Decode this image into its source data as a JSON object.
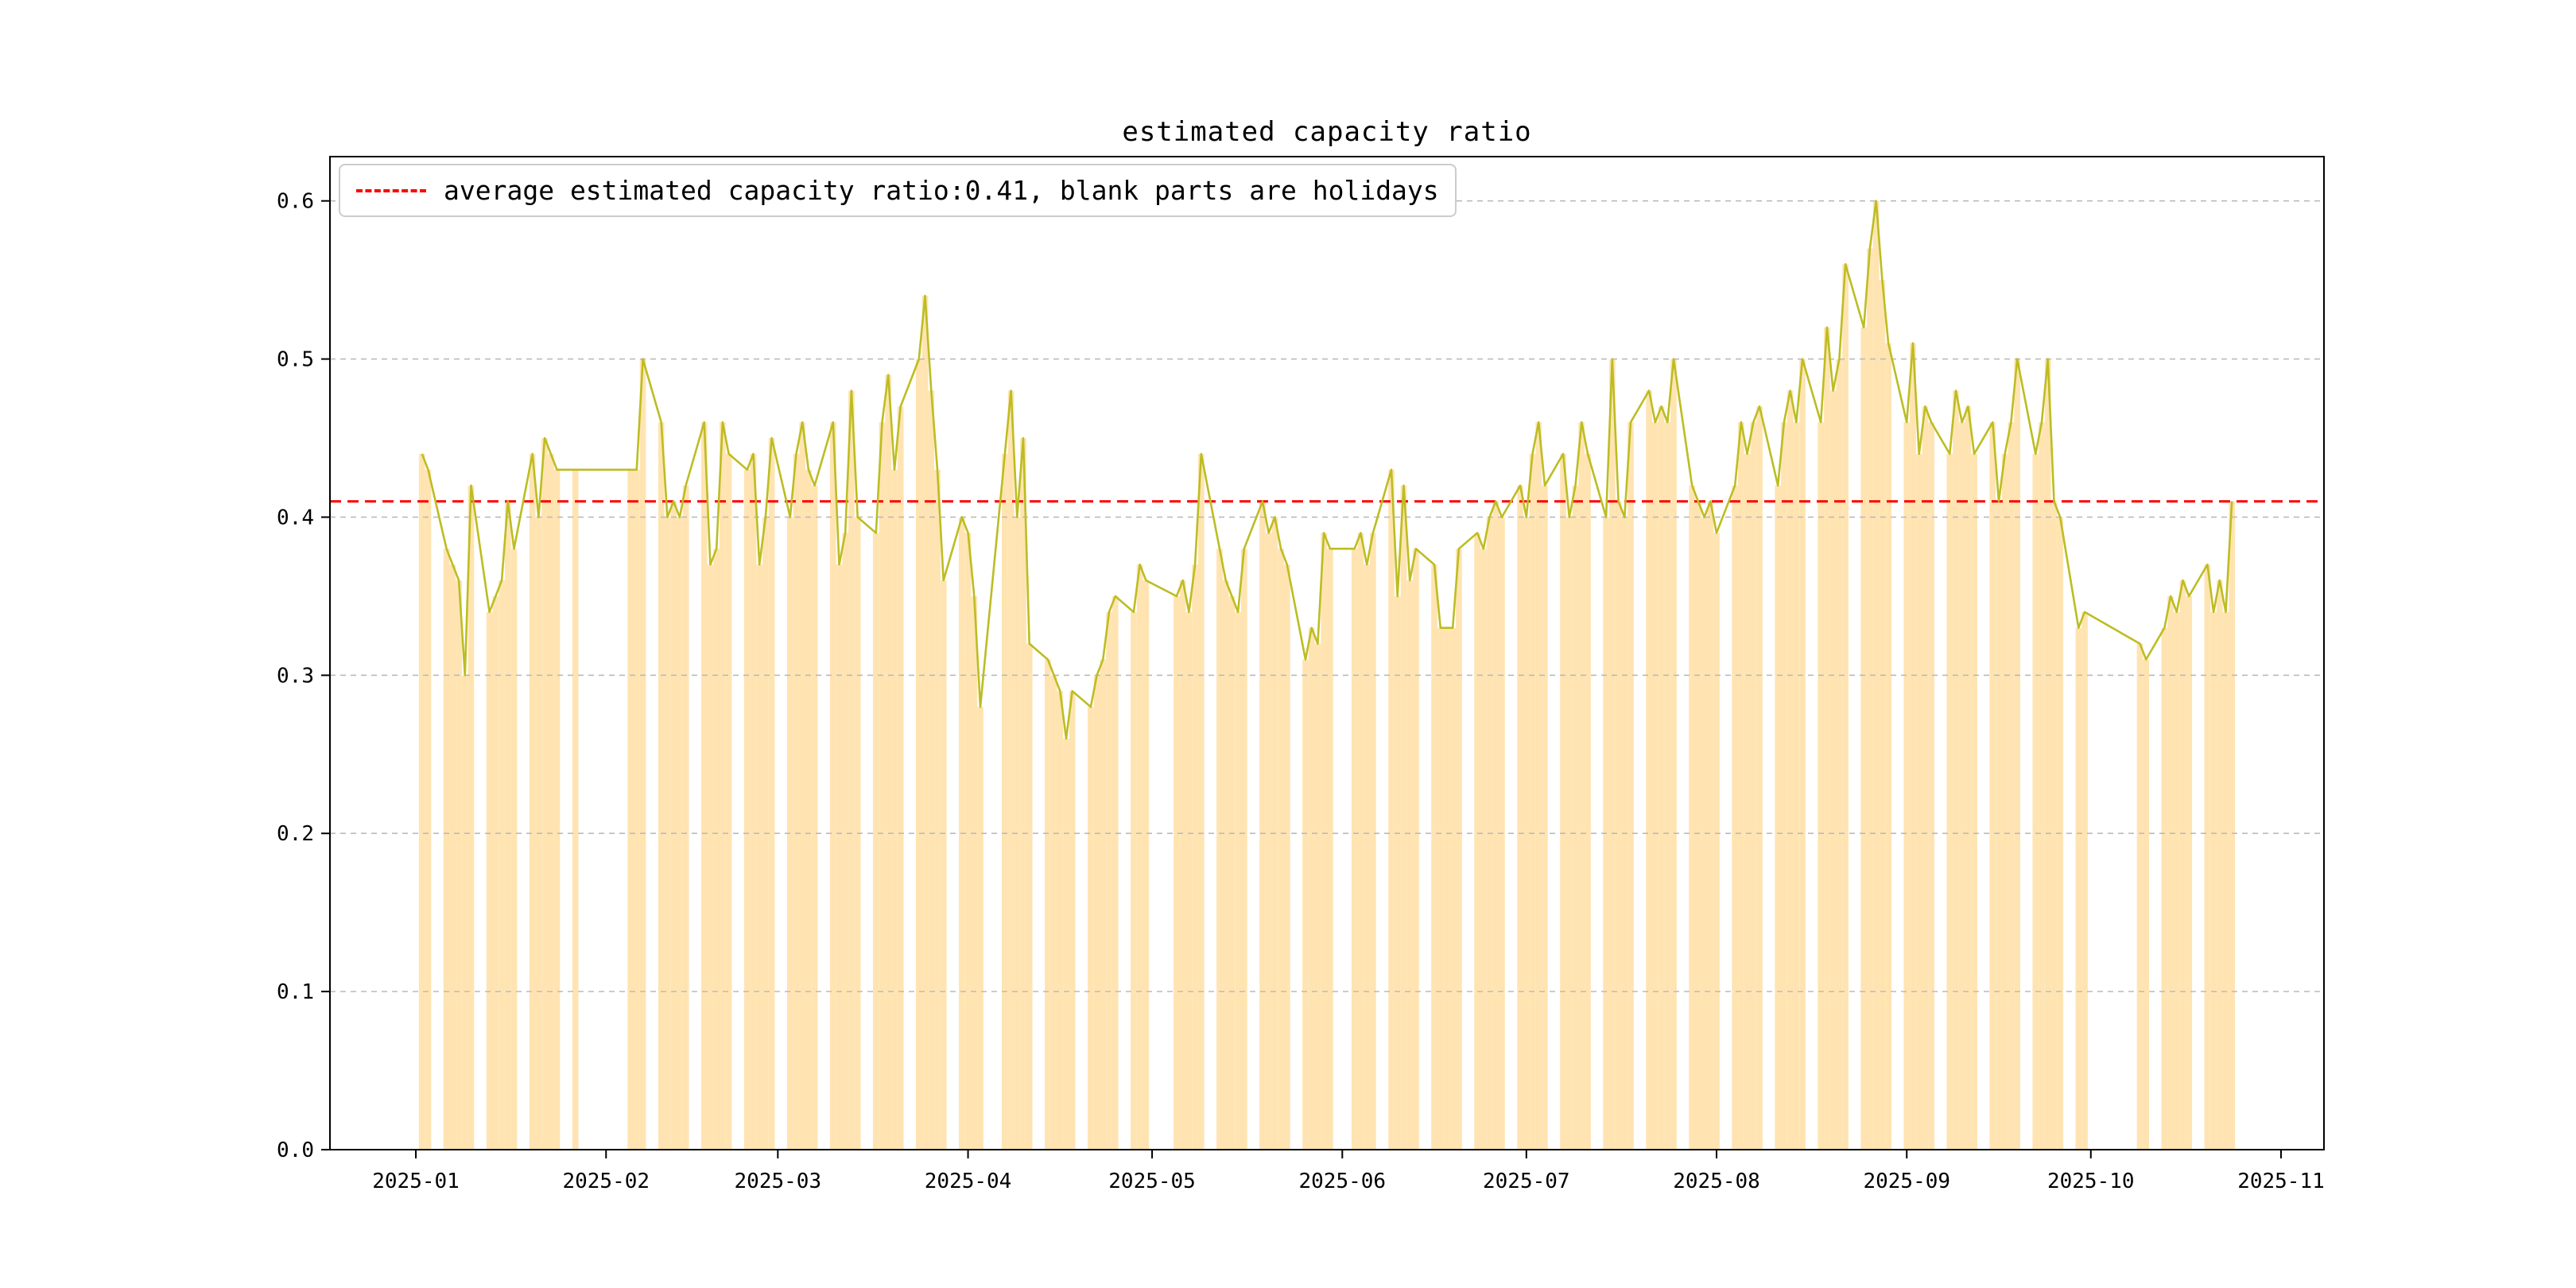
{
  "title": "estimated capacity ratio",
  "legend": {
    "label": "average estimated capacity ratio:0.41, blank parts are holidays"
  },
  "chart_data": {
    "type": "line",
    "title": "estimated capacity ratio",
    "series_name": "estimated capacity ratio",
    "average": 0.41,
    "grid": true,
    "legend_position": "upper left",
    "ylim": [
      0,
      0.628
    ],
    "yticks": [
      0.0,
      0.1,
      0.2,
      0.3,
      0.4,
      0.5,
      0.6
    ],
    "ytick_labels": [
      "0.0",
      "0.1",
      "0.2",
      "0.3",
      "0.4",
      "0.5",
      "0.6"
    ],
    "x_range": [
      "2024-12-18",
      "2025-11-08"
    ],
    "xticks": [
      {
        "label": "2025-01",
        "date": "2025-01-01"
      },
      {
        "label": "2025-02",
        "date": "2025-02-01"
      },
      {
        "label": "2025-03",
        "date": "2025-03-01"
      },
      {
        "label": "2025-04",
        "date": "2025-04-01"
      },
      {
        "label": "2025-05",
        "date": "2025-05-01"
      },
      {
        "label": "2025-06",
        "date": "2025-06-01"
      },
      {
        "label": "2025-07",
        "date": "2025-07-01"
      },
      {
        "label": "2025-08",
        "date": "2025-08-01"
      },
      {
        "label": "2025-09",
        "date": "2025-09-01"
      },
      {
        "label": "2025-10",
        "date": "2025-10-01"
      },
      {
        "label": "2025-11",
        "date": "2025-11-01"
      }
    ],
    "colors": {
      "line": "#bcbd22",
      "bar": "#ffe4b2",
      "average": "#ff0000",
      "grid": "#bbbbbb",
      "axis": "#000000"
    },
    "dates": [
      "2025-01-02",
      "2025-01-03",
      "2025-01-06",
      "2025-01-07",
      "2025-01-08",
      "2025-01-09",
      "2025-01-10",
      "2025-01-13",
      "2025-01-14",
      "2025-01-15",
      "2025-01-16",
      "2025-01-17",
      "2025-01-20",
      "2025-01-21",
      "2025-01-22",
      "2025-01-23",
      "2025-01-24",
      "2025-01-27",
      "2025-02-05",
      "2025-02-06",
      "2025-02-07",
      "2025-02-10",
      "2025-02-11",
      "2025-02-12",
      "2025-02-13",
      "2025-02-14",
      "2025-02-17",
      "2025-02-18",
      "2025-02-19",
      "2025-02-20",
      "2025-02-21",
      "2025-02-24",
      "2025-02-25",
      "2025-02-26",
      "2025-02-27",
      "2025-02-28",
      "2025-03-03",
      "2025-03-04",
      "2025-03-05",
      "2025-03-06",
      "2025-03-07",
      "2025-03-10",
      "2025-03-11",
      "2025-03-12",
      "2025-03-13",
      "2025-03-14",
      "2025-03-17",
      "2025-03-18",
      "2025-03-19",
      "2025-03-20",
      "2025-03-21",
      "2025-03-24",
      "2025-03-25",
      "2025-03-26",
      "2025-03-27",
      "2025-03-28",
      "2025-03-31",
      "2025-04-01",
      "2025-04-02",
      "2025-04-03",
      "2025-04-07",
      "2025-04-08",
      "2025-04-09",
      "2025-04-10",
      "2025-04-11",
      "2025-04-14",
      "2025-04-15",
      "2025-04-16",
      "2025-04-17",
      "2025-04-18",
      "2025-04-21",
      "2025-04-22",
      "2025-04-23",
      "2025-04-24",
      "2025-04-25",
      "2025-04-28",
      "2025-04-29",
      "2025-04-30",
      "2025-05-05",
      "2025-05-06",
      "2025-05-07",
      "2025-05-08",
      "2025-05-09",
      "2025-05-12",
      "2025-05-13",
      "2025-05-14",
      "2025-05-15",
      "2025-05-16",
      "2025-05-19",
      "2025-05-20",
      "2025-05-21",
      "2025-05-22",
      "2025-05-23",
      "2025-05-26",
      "2025-05-27",
      "2025-05-28",
      "2025-05-29",
      "2025-05-30",
      "2025-06-03",
      "2025-06-04",
      "2025-06-05",
      "2025-06-06",
      "2025-06-09",
      "2025-06-10",
      "2025-06-11",
      "2025-06-12",
      "2025-06-13",
      "2025-06-16",
      "2025-06-17",
      "2025-06-18",
      "2025-06-19",
      "2025-06-20",
      "2025-06-23",
      "2025-06-24",
      "2025-06-25",
      "2025-06-26",
      "2025-06-27",
      "2025-06-30",
      "2025-07-01",
      "2025-07-02",
      "2025-07-03",
      "2025-07-04",
      "2025-07-07",
      "2025-07-08",
      "2025-07-09",
      "2025-07-10",
      "2025-07-11",
      "2025-07-14",
      "2025-07-15",
      "2025-07-16",
      "2025-07-17",
      "2025-07-18",
      "2025-07-21",
      "2025-07-22",
      "2025-07-23",
      "2025-07-24",
      "2025-07-25",
      "2025-07-28",
      "2025-07-29",
      "2025-07-30",
      "2025-07-31",
      "2025-08-01",
      "2025-08-04",
      "2025-08-05",
      "2025-08-06",
      "2025-08-07",
      "2025-08-08",
      "2025-08-11",
      "2025-08-12",
      "2025-08-13",
      "2025-08-14",
      "2025-08-15",
      "2025-08-18",
      "2025-08-19",
      "2025-08-20",
      "2025-08-21",
      "2025-08-22",
      "2025-08-25",
      "2025-08-26",
      "2025-08-27",
      "2025-08-28",
      "2025-08-29",
      "2025-09-01",
      "2025-09-02",
      "2025-09-03",
      "2025-09-04",
      "2025-09-05",
      "2025-09-08",
      "2025-09-09",
      "2025-09-10",
      "2025-09-11",
      "2025-09-12",
      "2025-09-15",
      "2025-09-16",
      "2025-09-17",
      "2025-09-18",
      "2025-09-19",
      "2025-09-22",
      "2025-09-23",
      "2025-09-24",
      "2025-09-25",
      "2025-09-26",
      "2025-09-29",
      "2025-09-30",
      "2025-10-09",
      "2025-10-10",
      "2025-10-13",
      "2025-10-14",
      "2025-10-15",
      "2025-10-16",
      "2025-10-17",
      "2025-10-20",
      "2025-10-21",
      "2025-10-22",
      "2025-10-23",
      "2025-10-24"
    ],
    "values": [
      0.44,
      0.43,
      0.38,
      0.37,
      0.36,
      0.3,
      0.42,
      0.34,
      0.35,
      0.36,
      0.41,
      0.38,
      0.44,
      0.4,
      0.45,
      0.44,
      0.43,
      0.43,
      0.43,
      0.43,
      0.5,
      0.46,
      0.4,
      0.41,
      0.4,
      0.42,
      0.46,
      0.37,
      0.38,
      0.46,
      0.44,
      0.43,
      0.44,
      0.37,
      0.4,
      0.45,
      0.4,
      0.44,
      0.46,
      0.43,
      0.42,
      0.46,
      0.37,
      0.39,
      0.48,
      0.4,
      0.39,
      0.46,
      0.49,
      0.43,
      0.47,
      0.5,
      0.54,
      0.48,
      0.43,
      0.36,
      0.4,
      0.39,
      0.35,
      0.28,
      0.44,
      0.48,
      0.4,
      0.45,
      0.32,
      0.31,
      0.3,
      0.29,
      0.26,
      0.29,
      0.28,
      0.3,
      0.31,
      0.34,
      0.35,
      0.34,
      0.37,
      0.36,
      0.35,
      0.36,
      0.34,
      0.37,
      0.44,
      0.38,
      0.36,
      0.35,
      0.34,
      0.38,
      0.41,
      0.39,
      0.4,
      0.38,
      0.37,
      0.31,
      0.33,
      0.32,
      0.39,
      0.38,
      0.38,
      0.39,
      0.37,
      0.39,
      0.43,
      0.35,
      0.42,
      0.36,
      0.38,
      0.37,
      0.33,
      0.33,
      0.33,
      0.38,
      0.39,
      0.38,
      0.4,
      0.41,
      0.4,
      0.42,
      0.4,
      0.44,
      0.46,
      0.42,
      0.44,
      0.4,
      0.42,
      0.46,
      0.44,
      0.4,
      0.5,
      0.41,
      0.4,
      0.46,
      0.48,
      0.46,
      0.47,
      0.46,
      0.5,
      0.42,
      0.41,
      0.4,
      0.41,
      0.39,
      0.42,
      0.46,
      0.44,
      0.46,
      0.47,
      0.42,
      0.46,
      0.48,
      0.46,
      0.5,
      0.46,
      0.52,
      0.48,
      0.5,
      0.56,
      0.52,
      0.57,
      0.6,
      0.55,
      0.51,
      0.46,
      0.51,
      0.44,
      0.47,
      0.46,
      0.44,
      0.48,
      0.46,
      0.47,
      0.44,
      0.46,
      0.41,
      0.44,
      0.46,
      0.5,
      0.44,
      0.46,
      0.5,
      0.41,
      0.4,
      0.33,
      0.34,
      0.32,
      0.31,
      0.33,
      0.35,
      0.34,
      0.36,
      0.35,
      0.37,
      0.34,
      0.36,
      0.34,
      0.41
    ]
  }
}
